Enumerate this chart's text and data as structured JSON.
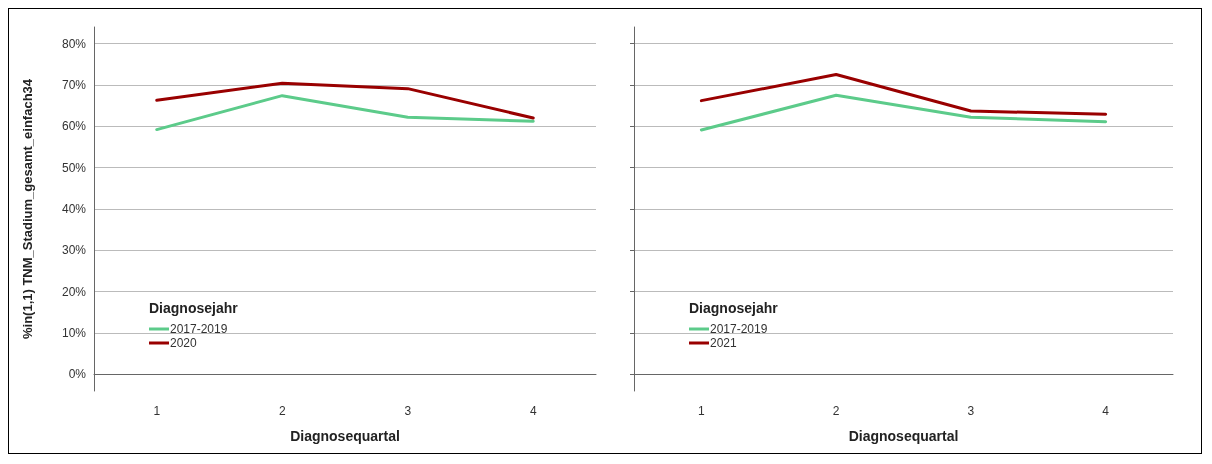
{
  "chart_data": [
    {
      "type": "line",
      "ylabel": "%in(1,1) TNM_Stadium_gesamt_einfach34",
      "xlabel": "Diagnosequartal",
      "legend_title": "Diagnosejahr",
      "categories": [
        "1",
        "2",
        "3",
        "4"
      ],
      "series": [
        {
          "name": "2017-2019",
          "color": "#5ccb8a",
          "values": [
            59.2,
            67.4,
            62.2,
            61.2
          ]
        },
        {
          "name": "2020",
          "color": "#990000",
          "values": [
            66.3,
            70.4,
            69.1,
            62.0
          ]
        }
      ],
      "ylim": [
        -4,
        84
      ],
      "yticks": [
        {
          "value": 0,
          "label": "0%"
        },
        {
          "value": 10,
          "label": "10%"
        },
        {
          "value": 20,
          "label": "20%"
        },
        {
          "value": 30,
          "label": "30%"
        },
        {
          "value": 40,
          "label": "40%"
        },
        {
          "value": 50,
          "label": "50%"
        },
        {
          "value": 60,
          "label": "60%"
        },
        {
          "value": 70,
          "label": "70%"
        },
        {
          "value": 80,
          "label": "80%"
        }
      ],
      "grid": "y",
      "legend": "bottom left",
      "marker": "none",
      "line_style": "solid"
    },
    {
      "type": "line",
      "xlabel": "Diagnosequartal",
      "legend_title": "Diagnosejahr",
      "categories": [
        "1",
        "2",
        "3",
        "4"
      ],
      "series": [
        {
          "name": "2017-2019",
          "color": "#5ccb8a",
          "values": [
            59.1,
            67.5,
            62.2,
            61.1
          ]
        },
        {
          "name": "2021",
          "color": "#990000",
          "values": [
            66.2,
            72.5,
            63.7,
            62.9
          ]
        }
      ],
      "ylim": [
        -4,
        84
      ],
      "yticks": [
        {
          "value": 0,
          "label": null
        },
        {
          "value": 10,
          "label": null
        },
        {
          "value": 20,
          "label": null
        },
        {
          "value": 30,
          "label": null
        },
        {
          "value": 40,
          "label": null
        },
        {
          "value": 50,
          "label": null
        },
        {
          "value": 60,
          "label": null
        },
        {
          "value": 70,
          "label": null
        },
        {
          "value": 80,
          "label": null
        }
      ],
      "grid": "y",
      "legend": "bottom left",
      "marker": "none",
      "line_style": "solid",
      "tick_labels": "x"
    }
  ]
}
